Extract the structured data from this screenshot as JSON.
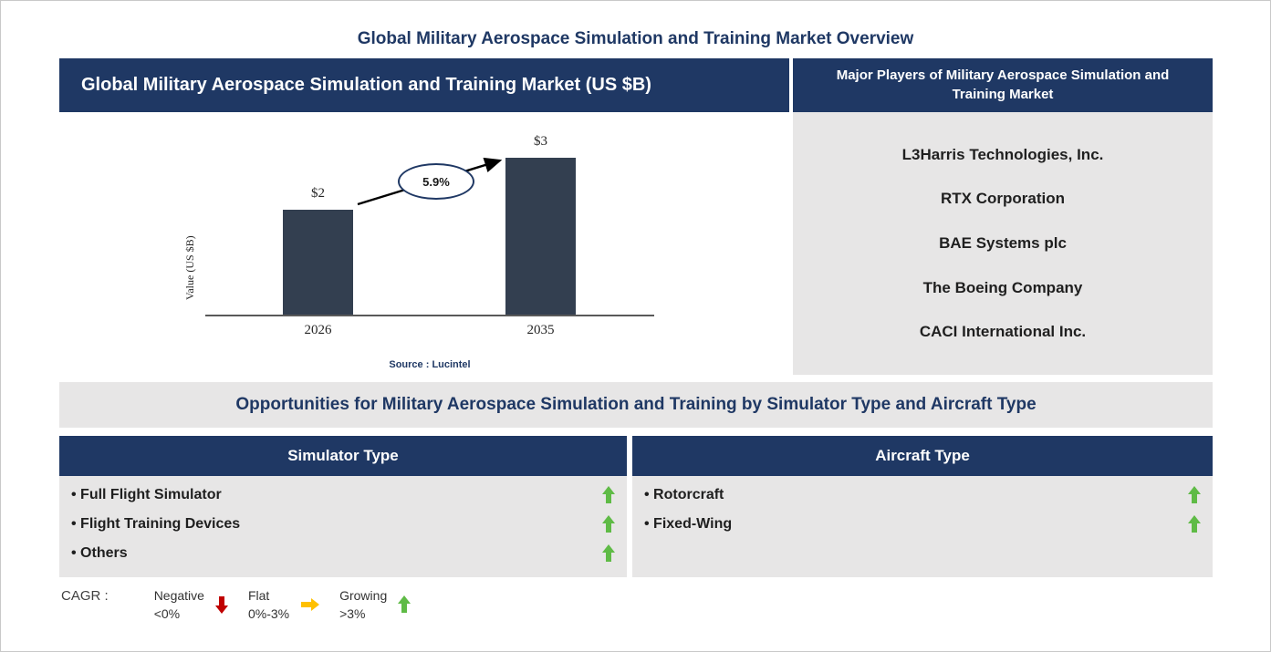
{
  "page": {
    "title": "Global Military Aerospace Simulation and Training Market Overview"
  },
  "chart_panel": {
    "header": "Global Military Aerospace Simulation and Training Market (US $B)"
  },
  "chart_data": {
    "type": "bar",
    "title": "Global Military Aerospace Simulation and Training Market (US $B)",
    "categories": [
      "2026",
      "2035"
    ],
    "values": [
      2,
      3
    ],
    "value_labels": [
      "$2",
      "$3"
    ],
    "ylabel": "Value (US $B)",
    "ylim": [
      0,
      3
    ],
    "grid": false,
    "legend_position": "none",
    "annotation": "5.9%",
    "source": "Source : Lucintel",
    "bar_color": "#333F50"
  },
  "major_players": {
    "header": "Major Players of Military Aerospace Simulation and Training Market",
    "players": [
      "L3Harris Technologies, Inc.",
      "RTX Corporation",
      "BAE Systems plc",
      "The Boeing Company",
      "CACI International Inc."
    ]
  },
  "opportunities": {
    "header": "Opportunities for Military Aerospace Simulation and Training by Simulator Type and Aircraft Type",
    "columns": [
      {
        "header": "Simulator Type",
        "items": [
          {
            "label": "Full Flight Simulator",
            "trend": "growing"
          },
          {
            "label": "Flight Training Devices",
            "trend": "growing"
          },
          {
            "label": "Others",
            "trend": "growing"
          }
        ]
      },
      {
        "header": "Aircraft Type",
        "items": [
          {
            "label": "Rotorcraft",
            "trend": "growing"
          },
          {
            "label": "Fixed-Wing",
            "trend": "growing"
          }
        ]
      }
    ]
  },
  "legend": {
    "label": "CAGR :",
    "entries": [
      {
        "name": "Negative",
        "range": "<0%",
        "icon": "down-arrow",
        "color": "#C00000"
      },
      {
        "name": "Flat",
        "range": "0%-3%",
        "icon": "right-arrow",
        "color": "#FFC000"
      },
      {
        "name": "Growing",
        "range": ">3%",
        "icon": "up-arrow",
        "color": "#5FBB46"
      }
    ]
  },
  "colors": {
    "header_navy": "#1F3864",
    "panel_gray": "#E7E6E6",
    "bar": "#333F50",
    "growing_green": "#5FBB46",
    "negative_red": "#C00000",
    "flat_amber": "#FFC000"
  }
}
